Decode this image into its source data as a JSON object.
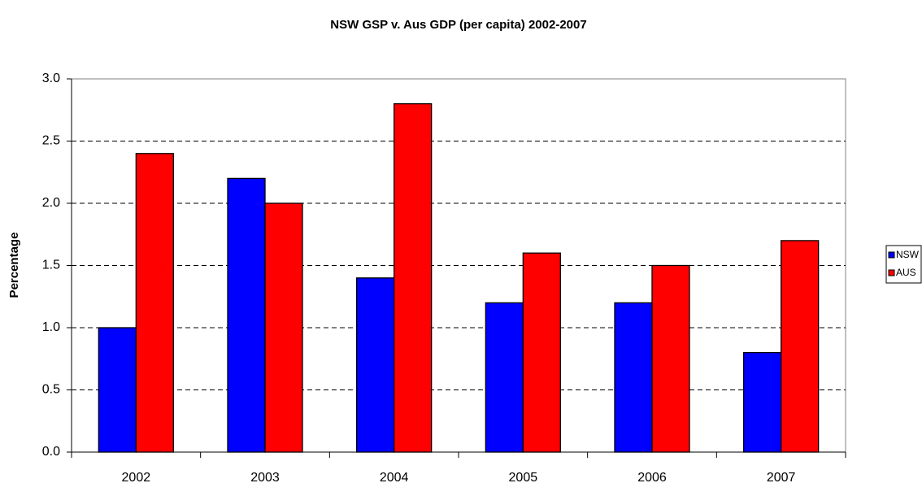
{
  "chart_data": {
    "type": "bar",
    "title": "NSW GSP v. Aus GDP (per capita) 2002-2007",
    "y_label": "Percentage",
    "categories": [
      "2002",
      "2003",
      "2004",
      "2005",
      "2006",
      "2007"
    ],
    "series": [
      {
        "name": "NSW",
        "color": "#0000ff",
        "values": [
          1.0,
          2.2,
          1.4,
          1.2,
          1.2,
          0.8
        ]
      },
      {
        "name": "AUS",
        "color": "#ff0000",
        "values": [
          2.4,
          2.0,
          2.8,
          1.6,
          1.5,
          1.7
        ]
      }
    ],
    "ylim": [
      0,
      3
    ],
    "yticks": [
      {
        "value": 0,
        "label": "0.0"
      },
      0.5,
      {
        "value": 1,
        "label": "1.0"
      },
      1.5,
      {
        "value": 2,
        "label": "2.0"
      },
      2.5,
      {
        "value": 3,
        "label": "3.0"
      }
    ],
    "grid": true,
    "legend": "right"
  }
}
